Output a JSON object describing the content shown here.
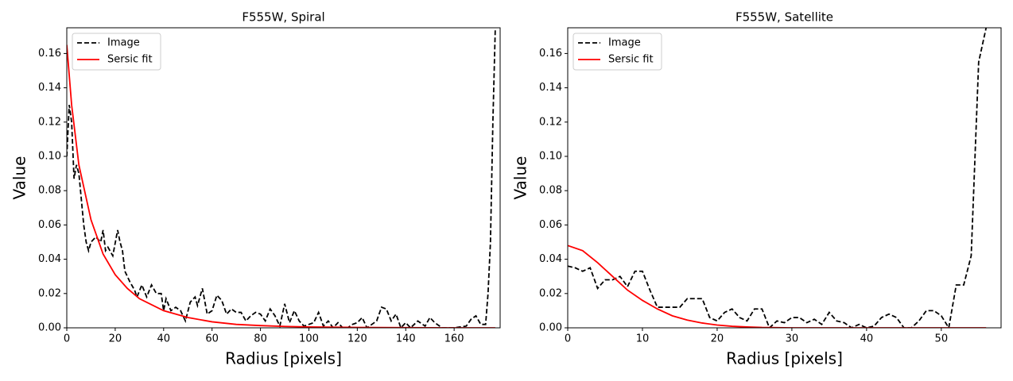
{
  "chart_data": [
    {
      "type": "line",
      "title": "F555W, Spiral",
      "xlabel": "Radius [pixels]",
      "ylabel": "Value",
      "legend": "upper left",
      "xlim": [
        0,
        179
      ],
      "ylim": [
        0,
        0.175
      ],
      "xticks": [
        0,
        20,
        40,
        60,
        80,
        100,
        120,
        140,
        160
      ],
      "yticks": [
        {
          "value": 0,
          "label": "0.00"
        },
        {
          "value": 0.02,
          "label": "0.02"
        },
        {
          "value": 0.04,
          "label": "0.04"
        },
        {
          "value": 0.06,
          "label": "0.06"
        },
        {
          "value": 0.08,
          "label": "0.08"
        },
        {
          "value": 0.1,
          "label": "0.10"
        },
        {
          "value": 0.12,
          "label": "0.12"
        },
        {
          "value": 0.14,
          "label": "0.14"
        },
        {
          "value": 0.16,
          "label": "0.16"
        }
      ],
      "series": [
        {
          "name": "Image",
          "color": "#000000",
          "dash": "dashed",
          "x": [
            0,
            1,
            2,
            3,
            4,
            5,
            6,
            7,
            8,
            9,
            10,
            12,
            14,
            15,
            16,
            17,
            19,
            21,
            22,
            23,
            24,
            26,
            28,
            29,
            31,
            33,
            35,
            37,
            39,
            40,
            41,
            43,
            45,
            47,
            49,
            51,
            53,
            54,
            56,
            58,
            60,
            62,
            64,
            66,
            68,
            70,
            72,
            74,
            76,
            78,
            80,
            82,
            84,
            86,
            88,
            90,
            92,
            94,
            96,
            98,
            100,
            102,
            104,
            106,
            108,
            110,
            112,
            114,
            116,
            118,
            120,
            122,
            124,
            126,
            128,
            130,
            132,
            134,
            136,
            138,
            140,
            142,
            145,
            148,
            150,
            152,
            155,
            160,
            165,
            167,
            169,
            171,
            173,
            174,
            175,
            176,
            177,
            178
          ],
          "values": [
            0.1,
            0.13,
            0.12,
            0.087,
            0.095,
            0.09,
            0.075,
            0.06,
            0.05,
            0.045,
            0.05,
            0.053,
            0.05,
            0.057,
            0.045,
            0.047,
            0.042,
            0.057,
            0.05,
            0.045,
            0.033,
            0.027,
            0.022,
            0.018,
            0.025,
            0.018,
            0.025,
            0.02,
            0.02,
            0.01,
            0.017,
            0.01,
            0.012,
            0.01,
            0.004,
            0.015,
            0.018,
            0.013,
            0.023,
            0.008,
            0.01,
            0.019,
            0.016,
            0.008,
            0.011,
            0.009,
            0.009,
            0.004,
            0.007,
            0.009,
            0.008,
            0.004,
            0.011,
            0.007,
            0.001,
            0.014,
            0.003,
            0.01,
            0.004,
            0.001,
            0.002,
            0.003,
            0.009,
            0.001,
            0.004,
            0,
            0.003,
            0,
            0,
            0.002,
            0.003,
            0.006,
            0,
            0.002,
            0.004,
            0.012,
            0.011,
            0.004,
            0.008,
            0,
            0.003,
            0,
            0.004,
            0.001,
            0.006,
            0.003,
            0,
            0,
            0.001,
            0.005,
            0.007,
            0.002,
            0.002,
            0.02,
            0.05,
            0.12,
            0.175,
            0.2
          ]
        },
        {
          "name": "Sersic fit",
          "color": "#ff0000",
          "dash": "solid",
          "x": [
            0,
            2,
            5,
            10,
            15,
            20,
            25,
            30,
            40,
            50,
            60,
            70,
            80,
            90,
            100,
            120,
            140,
            160,
            177
          ],
          "values": [
            0.165,
            0.13,
            0.095,
            0.063,
            0.043,
            0.031,
            0.023,
            0.017,
            0.01,
            0.006,
            0.0035,
            0.002,
            0.0013,
            0.0008,
            0.0005,
            0.0002,
            0.0001,
            0,
            0
          ]
        }
      ]
    },
    {
      "type": "line",
      "title": "F555W, Satellite",
      "xlabel": "Radius [pixels]",
      "ylabel": "Value",
      "legend": "upper left",
      "xlim": [
        0,
        58
      ],
      "ylim": [
        0,
        0.175
      ],
      "xticks": [
        0,
        10,
        20,
        30,
        40,
        50
      ],
      "yticks": [
        {
          "value": 0,
          "label": "0.00"
        },
        {
          "value": 0.02,
          "label": "0.02"
        },
        {
          "value": 0.04,
          "label": "0.04"
        },
        {
          "value": 0.06,
          "label": "0.06"
        },
        {
          "value": 0.08,
          "label": "0.08"
        },
        {
          "value": 0.1,
          "label": "0.10"
        },
        {
          "value": 0.12,
          "label": "0.12"
        },
        {
          "value": 0.14,
          "label": "0.14"
        },
        {
          "value": 0.16,
          "label": "0.16"
        }
      ],
      "series": [
        {
          "name": "Image",
          "color": "#000000",
          "dash": "dashed",
          "x": [
            0,
            1,
            2,
            3,
            4,
            5,
            6,
            7,
            8,
            9,
            10,
            11,
            12,
            13,
            14,
            15,
            16,
            17,
            18,
            19,
            20,
            21,
            22,
            23,
            24,
            25,
            26,
            27,
            28,
            29,
            30,
            31,
            32,
            33,
            34,
            35,
            36,
            37,
            38,
            39,
            40,
            41,
            42,
            43,
            44,
            45,
            46,
            47,
            48,
            49,
            50,
            51,
            52,
            53,
            54,
            55,
            56,
            57
          ],
          "values": [
            0.036,
            0.035,
            0.033,
            0.035,
            0.023,
            0.028,
            0.028,
            0.03,
            0.024,
            0.033,
            0.033,
            0.022,
            0.012,
            0.012,
            0.012,
            0.012,
            0.017,
            0.017,
            0.017,
            0.006,
            0.004,
            0.009,
            0.011,
            0.006,
            0.004,
            0.011,
            0.011,
            0,
            0.004,
            0.003,
            0.006,
            0.006,
            0.003,
            0.005,
            0.002,
            0.009,
            0.004,
            0.003,
            0,
            0.002,
            0,
            0.001,
            0.006,
            0.008,
            0.006,
            0,
            0,
            0.004,
            0.01,
            0.01,
            0.007,
            0,
            0.025,
            0.025,
            0.042,
            0.155,
            0.175,
            0.2
          ]
        },
        {
          "name": "Sersic fit",
          "color": "#ff0000",
          "dash": "solid",
          "x": [
            0,
            2,
            4,
            6,
            8,
            10,
            12,
            14,
            16,
            18,
            20,
            22,
            24,
            26,
            30,
            40,
            56
          ],
          "values": [
            0.048,
            0.045,
            0.038,
            0.03,
            0.022,
            0.016,
            0.011,
            0.007,
            0.0045,
            0.0028,
            0.0016,
            0.0009,
            0.0005,
            0.0002,
            0,
            0,
            0
          ]
        }
      ]
    }
  ]
}
